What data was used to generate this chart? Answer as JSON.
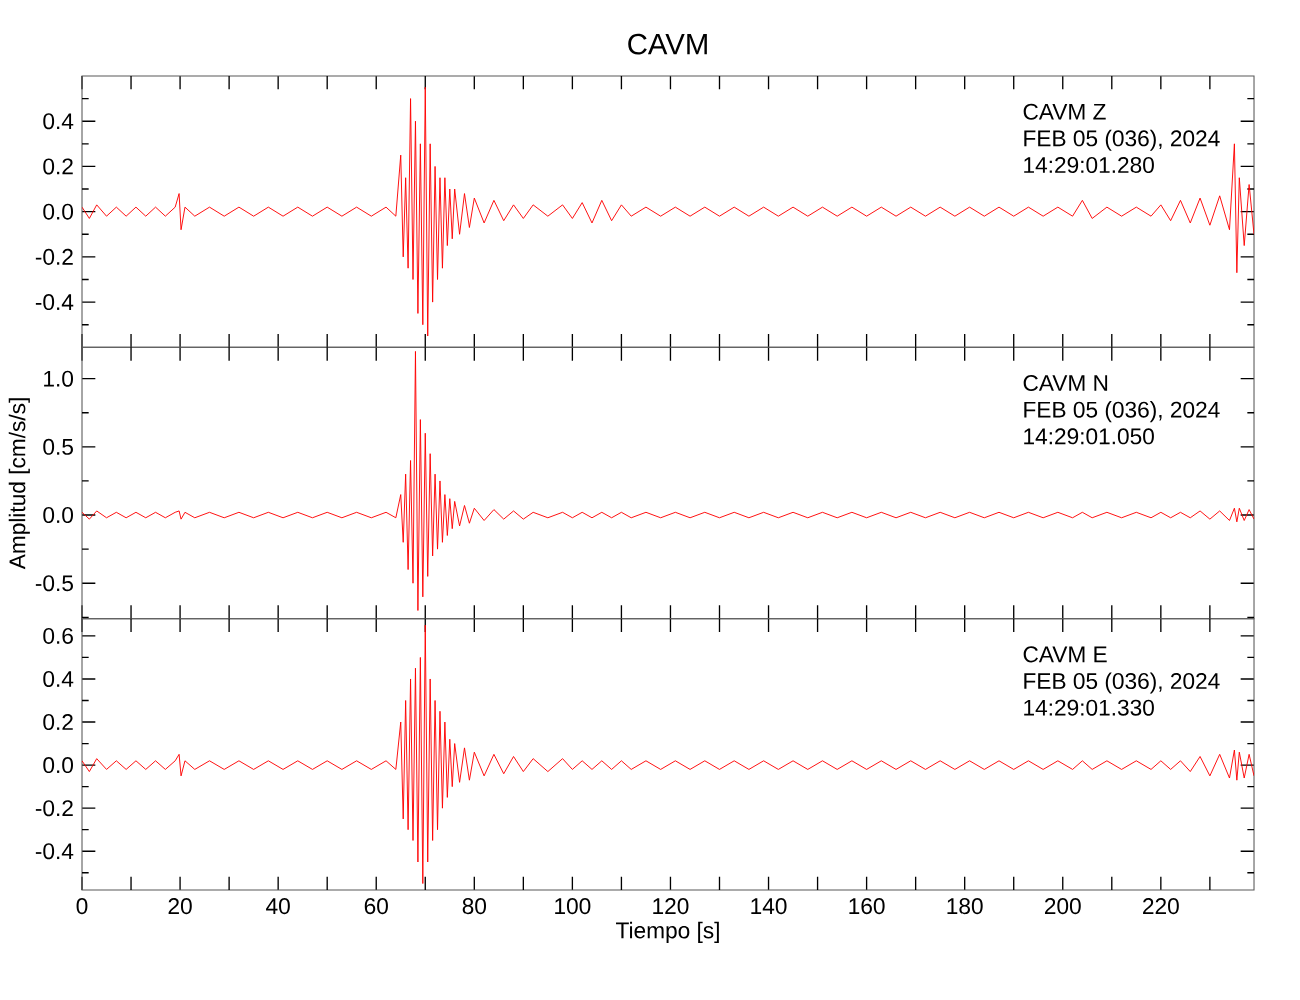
{
  "chart_data": [
    {
      "type": "line",
      "title": "CAVM",
      "annotations": [
        "CAVM Z",
        "FEB 05 (036), 2024",
        "14:29:01.280"
      ],
      "tick_labels": "y",
      "marker": "none",
      "line_style": "solid",
      "xlim": [
        0,
        239
      ],
      "ylim": [
        -0.6,
        0.6
      ],
      "xticks": [
        0,
        20,
        40,
        60,
        80,
        100,
        120,
        140,
        160,
        180,
        200,
        220,
        {
          "value": 10,
          "label": null
        },
        {
          "value": 30,
          "label": null
        },
        {
          "value": 50,
          "label": null
        },
        {
          "value": 70,
          "label": null
        },
        {
          "value": 90,
          "label": null
        },
        {
          "value": 110,
          "label": null
        },
        {
          "value": 130,
          "label": null
        },
        {
          "value": 150,
          "label": null
        },
        {
          "value": 170,
          "label": null
        },
        {
          "value": 190,
          "label": null
        },
        {
          "value": 210,
          "label": null
        },
        {
          "value": 230,
          "label": null
        }
      ],
      "yticks": [
        -0.4,
        -0.2,
        {
          "value": 0,
          "label": "0.0"
        },
        0.2,
        0.4,
        {
          "value": -0.5,
          "label": null
        },
        {
          "value": -0.3,
          "label": null
        },
        {
          "value": -0.1,
          "label": null
        },
        {
          "value": 0.1,
          "label": null
        },
        {
          "value": 0.3,
          "label": null
        },
        {
          "value": 0.5,
          "label": null
        }
      ],
      "x": [
        0,
        1.5,
        3,
        5,
        7,
        9,
        11,
        13,
        15,
        17,
        19,
        19.8,
        20.2,
        21,
        23,
        26,
        29,
        32,
        35,
        38,
        41,
        44,
        47,
        50,
        53,
        56,
        59,
        62,
        64,
        65,
        65.5,
        66,
        66.5,
        67,
        67.5,
        68,
        68.5,
        69,
        69.5,
        70,
        70.5,
        71,
        71.5,
        72,
        72.5,
        73,
        73.5,
        74,
        74.5,
        75,
        75.5,
        76,
        77,
        78,
        79,
        80,
        82,
        84,
        86,
        88,
        90,
        92,
        95,
        98,
        100,
        102,
        104,
        106,
        108,
        110,
        112,
        115,
        118,
        121,
        124,
        127,
        130,
        133,
        136,
        139,
        142,
        145,
        148,
        151,
        154,
        157,
        160,
        163,
        166,
        169,
        172,
        175,
        178,
        181,
        184,
        187,
        190,
        193,
        196,
        199,
        202,
        204,
        206,
        209,
        212,
        215,
        218,
        220,
        222,
        224,
        226,
        228,
        230,
        232,
        234,
        235,
        235.5,
        236,
        237,
        238,
        239
      ],
      "series": [
        {
          "color": "#ff0000",
          "values": [
            0.02,
            -0.03,
            0.03,
            -0.02,
            0.02,
            -0.02,
            0.02,
            -0.02,
            0.02,
            -0.02,
            0.02,
            0.08,
            -0.08,
            0.02,
            -0.02,
            0.02,
            -0.02,
            0.02,
            -0.02,
            0.02,
            -0.02,
            0.02,
            -0.02,
            0.02,
            -0.02,
            0.02,
            -0.02,
            0.02,
            -0.02,
            0.25,
            -0.2,
            0.15,
            -0.25,
            0.5,
            -0.3,
            0.4,
            -0.45,
            0.3,
            -0.5,
            0.55,
            -0.55,
            0.3,
            -0.4,
            0.2,
            -0.3,
            0.15,
            -0.25,
            0.15,
            -0.15,
            0.1,
            -0.12,
            0.1,
            -0.1,
            0.08,
            -0.07,
            0.06,
            -0.05,
            0.05,
            -0.04,
            0.03,
            -0.03,
            0.03,
            -0.02,
            0.03,
            -0.03,
            0.04,
            -0.05,
            0.05,
            -0.04,
            0.03,
            -0.02,
            0.02,
            -0.02,
            0.02,
            -0.02,
            0.02,
            -0.02,
            0.02,
            -0.02,
            0.02,
            -0.02,
            0.02,
            -0.02,
            0.02,
            -0.02,
            0.02,
            -0.02,
            0.02,
            -0.02,
            0.02,
            -0.02,
            0.02,
            -0.02,
            0.02,
            -0.02,
            0.02,
            -0.02,
            0.02,
            -0.02,
            0.02,
            -0.02,
            0.05,
            -0.03,
            0.02,
            -0.02,
            0.02,
            -0.02,
            0.03,
            -0.04,
            0.05,
            -0.05,
            0.06,
            -0.06,
            0.07,
            -0.08,
            0.3,
            -0.27,
            0.15,
            -0.15,
            0.12,
            -0.1
          ]
        }
      ]
    },
    {
      "type": "line",
      "ylabel": "Amplitud [cm/s/s]",
      "annotations": [
        "CAVM N",
        "FEB 05 (036), 2024",
        "14:29:01.050"
      ],
      "tick_labels": "y",
      "marker": "none",
      "line_style": "solid",
      "xlim": [
        0,
        239
      ],
      "ylim": [
        -0.76,
        1.23
      ],
      "xticks": [
        0,
        20,
        40,
        60,
        80,
        100,
        120,
        140,
        160,
        180,
        200,
        220,
        {
          "value": 10,
          "label": null
        },
        {
          "value": 30,
          "label": null
        },
        {
          "value": 50,
          "label": null
        },
        {
          "value": 70,
          "label": null
        },
        {
          "value": 90,
          "label": null
        },
        {
          "value": 110,
          "label": null
        },
        {
          "value": 130,
          "label": null
        },
        {
          "value": 150,
          "label": null
        },
        {
          "value": 170,
          "label": null
        },
        {
          "value": 190,
          "label": null
        },
        {
          "value": 210,
          "label": null
        },
        {
          "value": 230,
          "label": null
        }
      ],
      "yticks": [
        -0.5,
        {
          "value": 0,
          "label": "0.0"
        },
        0.5,
        {
          "value": 1,
          "label": "1.0"
        },
        {
          "value": -0.75,
          "label": null
        },
        {
          "value": -0.25,
          "label": null
        },
        {
          "value": 0.25,
          "label": null
        },
        {
          "value": 0.75,
          "label": null
        }
      ],
      "x": [
        0,
        1.5,
        3,
        5,
        7,
        9,
        11,
        13,
        15,
        17,
        19,
        19.8,
        20.2,
        21,
        23,
        26,
        29,
        32,
        35,
        38,
        41,
        44,
        47,
        50,
        53,
        56,
        59,
        62,
        64,
        65,
        65.5,
        66,
        66.5,
        67,
        67.5,
        68,
        68.5,
        69,
        69.5,
        70,
        70.5,
        71,
        71.5,
        72,
        72.5,
        73,
        73.5,
        74,
        74.5,
        75,
        75.5,
        76,
        77,
        78,
        79,
        80,
        82,
        84,
        86,
        88,
        90,
        92,
        95,
        98,
        100,
        102,
        104,
        106,
        108,
        110,
        112,
        115,
        118,
        121,
        124,
        127,
        130,
        133,
        136,
        139,
        142,
        145,
        148,
        151,
        154,
        157,
        160,
        163,
        166,
        169,
        172,
        175,
        178,
        181,
        184,
        187,
        190,
        193,
        196,
        199,
        202,
        204,
        206,
        209,
        212,
        215,
        218,
        220,
        222,
        224,
        226,
        228,
        230,
        232,
        234,
        235,
        235.5,
        236,
        237,
        238,
        239
      ],
      "series": [
        {
          "color": "#ff0000",
          "values": [
            0.02,
            -0.03,
            0.03,
            -0.02,
            0.02,
            -0.02,
            0.02,
            -0.02,
            0.02,
            -0.02,
            0.02,
            0.03,
            -0.03,
            0.02,
            -0.02,
            0.02,
            -0.02,
            0.02,
            -0.02,
            0.02,
            -0.02,
            0.02,
            -0.02,
            0.02,
            -0.02,
            0.02,
            -0.02,
            0.02,
            -0.02,
            0.15,
            -0.2,
            0.3,
            -0.4,
            0.4,
            -0.5,
            1.2,
            -0.7,
            0.7,
            -0.6,
            0.6,
            -0.45,
            0.45,
            -0.3,
            0.3,
            -0.25,
            0.25,
            -0.2,
            0.15,
            -0.15,
            0.12,
            -0.1,
            0.1,
            -0.08,
            0.07,
            -0.06,
            0.05,
            -0.04,
            0.04,
            -0.03,
            0.03,
            -0.03,
            0.02,
            -0.02,
            0.02,
            -0.02,
            0.02,
            -0.02,
            0.02,
            -0.02,
            0.02,
            -0.02,
            0.02,
            -0.02,
            0.02,
            -0.02,
            0.02,
            -0.02,
            0.02,
            -0.02,
            0.02,
            -0.02,
            0.02,
            -0.02,
            0.02,
            -0.02,
            0.02,
            -0.02,
            0.02,
            -0.02,
            0.02,
            -0.02,
            0.02,
            -0.02,
            0.02,
            -0.02,
            0.02,
            -0.02,
            0.02,
            -0.02,
            0.02,
            -0.02,
            0.02,
            -0.02,
            0.02,
            -0.02,
            0.02,
            -0.02,
            0.02,
            -0.02,
            0.02,
            -0.02,
            0.03,
            -0.03,
            0.03,
            -0.04,
            0.05,
            -0.05,
            0.05,
            -0.04,
            0.04,
            -0.03
          ]
        }
      ]
    },
    {
      "type": "line",
      "xlabel": "Tiempo [s]",
      "annotations": [
        "CAVM E",
        "FEB 05 (036), 2024",
        "14:29:01.330"
      ],
      "marker": "none",
      "line_style": "solid",
      "xlim": [
        0,
        239
      ],
      "ylim": [
        -0.58,
        0.68
      ],
      "xticks": [
        0,
        20,
        40,
        60,
        80,
        100,
        120,
        140,
        160,
        180,
        200,
        220,
        {
          "value": 10,
          "label": null
        },
        {
          "value": 30,
          "label": null
        },
        {
          "value": 50,
          "label": null
        },
        {
          "value": 70,
          "label": null
        },
        {
          "value": 90,
          "label": null
        },
        {
          "value": 110,
          "label": null
        },
        {
          "value": 130,
          "label": null
        },
        {
          "value": 150,
          "label": null
        },
        {
          "value": 170,
          "label": null
        },
        {
          "value": 190,
          "label": null
        },
        {
          "value": 210,
          "label": null
        },
        {
          "value": 230,
          "label": null
        }
      ],
      "yticks": [
        -0.4,
        -0.2,
        {
          "value": 0,
          "label": "0.0"
        },
        0.2,
        0.4,
        0.6,
        {
          "value": -0.5,
          "label": null
        },
        {
          "value": -0.3,
          "label": null
        },
        {
          "value": -0.1,
          "label": null
        },
        {
          "value": 0.1,
          "label": null
        },
        {
          "value": 0.3,
          "label": null
        },
        {
          "value": 0.5,
          "label": null
        }
      ],
      "x": [
        0,
        1.5,
        3,
        5,
        7,
        9,
        11,
        13,
        15,
        17,
        19,
        19.8,
        20.2,
        21,
        23,
        26,
        29,
        32,
        35,
        38,
        41,
        44,
        47,
        50,
        53,
        56,
        59,
        62,
        64,
        65,
        65.5,
        66,
        66.5,
        67,
        67.5,
        68,
        68.5,
        69,
        69.5,
        70,
        70.5,
        71,
        71.5,
        72,
        72.5,
        73,
        73.5,
        74,
        74.5,
        75,
        75.5,
        76,
        77,
        78,
        79,
        80,
        82,
        84,
        86,
        88,
        90,
        92,
        95,
        98,
        100,
        102,
        104,
        106,
        108,
        110,
        112,
        115,
        118,
        121,
        124,
        127,
        130,
        133,
        136,
        139,
        142,
        145,
        148,
        151,
        154,
        157,
        160,
        163,
        166,
        169,
        172,
        175,
        178,
        181,
        184,
        187,
        190,
        193,
        196,
        199,
        202,
        204,
        206,
        209,
        212,
        215,
        218,
        220,
        222,
        224,
        226,
        228,
        230,
        232,
        234,
        235,
        235.5,
        236,
        237,
        238,
        239
      ],
      "series": [
        {
          "color": "#ff0000",
          "values": [
            0.02,
            -0.03,
            0.03,
            -0.02,
            0.02,
            -0.02,
            0.02,
            -0.02,
            0.02,
            -0.02,
            0.02,
            0.05,
            -0.05,
            0.02,
            -0.02,
            0.02,
            -0.02,
            0.02,
            -0.02,
            0.02,
            -0.02,
            0.02,
            -0.02,
            0.02,
            -0.02,
            0.02,
            -0.02,
            0.02,
            -0.02,
            0.2,
            -0.25,
            0.3,
            -0.3,
            0.4,
            -0.35,
            0.45,
            -0.45,
            0.5,
            -0.55,
            0.65,
            -0.45,
            0.4,
            -0.35,
            0.3,
            -0.3,
            0.25,
            -0.2,
            0.2,
            -0.15,
            0.12,
            -0.1,
            0.1,
            -0.08,
            0.08,
            -0.07,
            0.06,
            -0.05,
            0.05,
            -0.04,
            0.04,
            -0.03,
            0.03,
            -0.03,
            0.03,
            -0.02,
            0.02,
            -0.02,
            0.02,
            -0.02,
            0.02,
            -0.02,
            0.02,
            -0.02,
            0.02,
            -0.02,
            0.02,
            -0.02,
            0.02,
            -0.02,
            0.02,
            -0.02,
            0.02,
            -0.02,
            0.02,
            -0.02,
            0.02,
            -0.02,
            0.02,
            -0.02,
            0.02,
            -0.02,
            0.02,
            -0.02,
            0.02,
            -0.02,
            0.02,
            -0.02,
            0.02,
            -0.02,
            0.02,
            -0.02,
            0.02,
            -0.02,
            0.02,
            -0.02,
            0.02,
            -0.02,
            0.02,
            -0.02,
            0.02,
            -0.03,
            0.04,
            -0.05,
            0.05,
            -0.06,
            0.07,
            -0.07,
            0.06,
            -0.06,
            0.05,
            -0.05
          ]
        }
      ]
    }
  ]
}
